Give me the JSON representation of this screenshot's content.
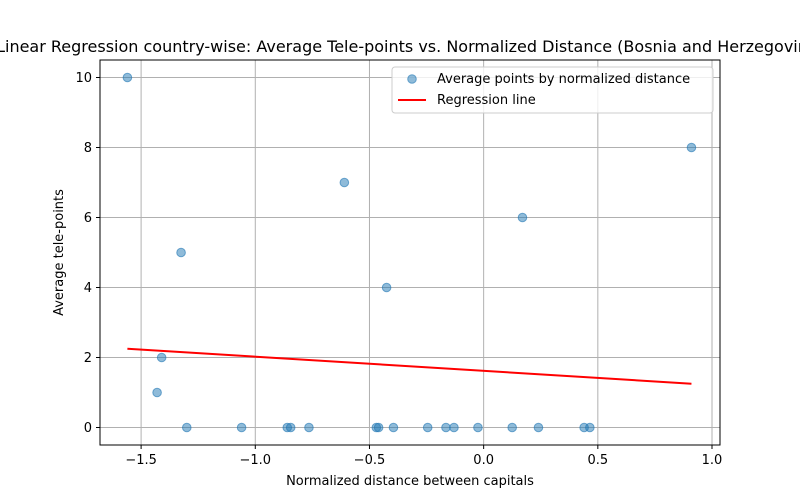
{
  "chart_data": {
    "type": "scatter",
    "title": "Linear Regression country-wise: Average Tele-points vs. Normalized Distance (Bosnia and Herzegovina)",
    "xlabel": "Normalized distance between capitals",
    "ylabel": "Average tele-points",
    "xlim": [
      -1.68,
      1.035
    ],
    "ylim": [
      -0.5,
      10.5
    ],
    "xticks": [
      -1.5,
      -1.0,
      -0.5,
      0.0,
      0.5,
      1.0
    ],
    "xtick_labels": [
      "−1.5",
      "−1.0",
      "−0.5",
      "0.0",
      "0.5",
      "1.0"
    ],
    "yticks": [
      0,
      2,
      4,
      6,
      8,
      10
    ],
    "ytick_labels": [
      "0",
      "2",
      "4",
      "6",
      "8",
      "10"
    ],
    "grid": true,
    "legend_position": "top-right",
    "series": [
      {
        "name": "Average points by normalized distance",
        "kind": "scatter",
        "color": "#1f77b4",
        "points": [
          {
            "x": -1.56,
            "y": 10
          },
          {
            "x": -1.325,
            "y": 5
          },
          {
            "x": -1.41,
            "y": 2
          },
          {
            "x": -1.43,
            "y": 1
          },
          {
            "x": -1.3,
            "y": 0
          },
          {
            "x": -1.06,
            "y": 0
          },
          {
            "x": -0.86,
            "y": 0
          },
          {
            "x": -0.845,
            "y": 0
          },
          {
            "x": -0.765,
            "y": 0
          },
          {
            "x": -0.61,
            "y": 7
          },
          {
            "x": -0.47,
            "y": 0
          },
          {
            "x": -0.46,
            "y": 0
          },
          {
            "x": -0.425,
            "y": 4
          },
          {
            "x": -0.395,
            "y": 0
          },
          {
            "x": -0.245,
            "y": 0
          },
          {
            "x": -0.165,
            "y": 0
          },
          {
            "x": -0.13,
            "y": 0
          },
          {
            "x": -0.025,
            "y": 0
          },
          {
            "x": 0.125,
            "y": 0
          },
          {
            "x": 0.17,
            "y": 6
          },
          {
            "x": 0.24,
            "y": 0
          },
          {
            "x": 0.44,
            "y": 0
          },
          {
            "x": 0.465,
            "y": 0
          },
          {
            "x": 0.91,
            "y": 8
          }
        ]
      },
      {
        "name": "Regression line",
        "kind": "line",
        "color": "#ff0000",
        "points": [
          {
            "x": -1.56,
            "y": 2.25
          },
          {
            "x": 0.91,
            "y": 1.25
          }
        ]
      }
    ]
  }
}
